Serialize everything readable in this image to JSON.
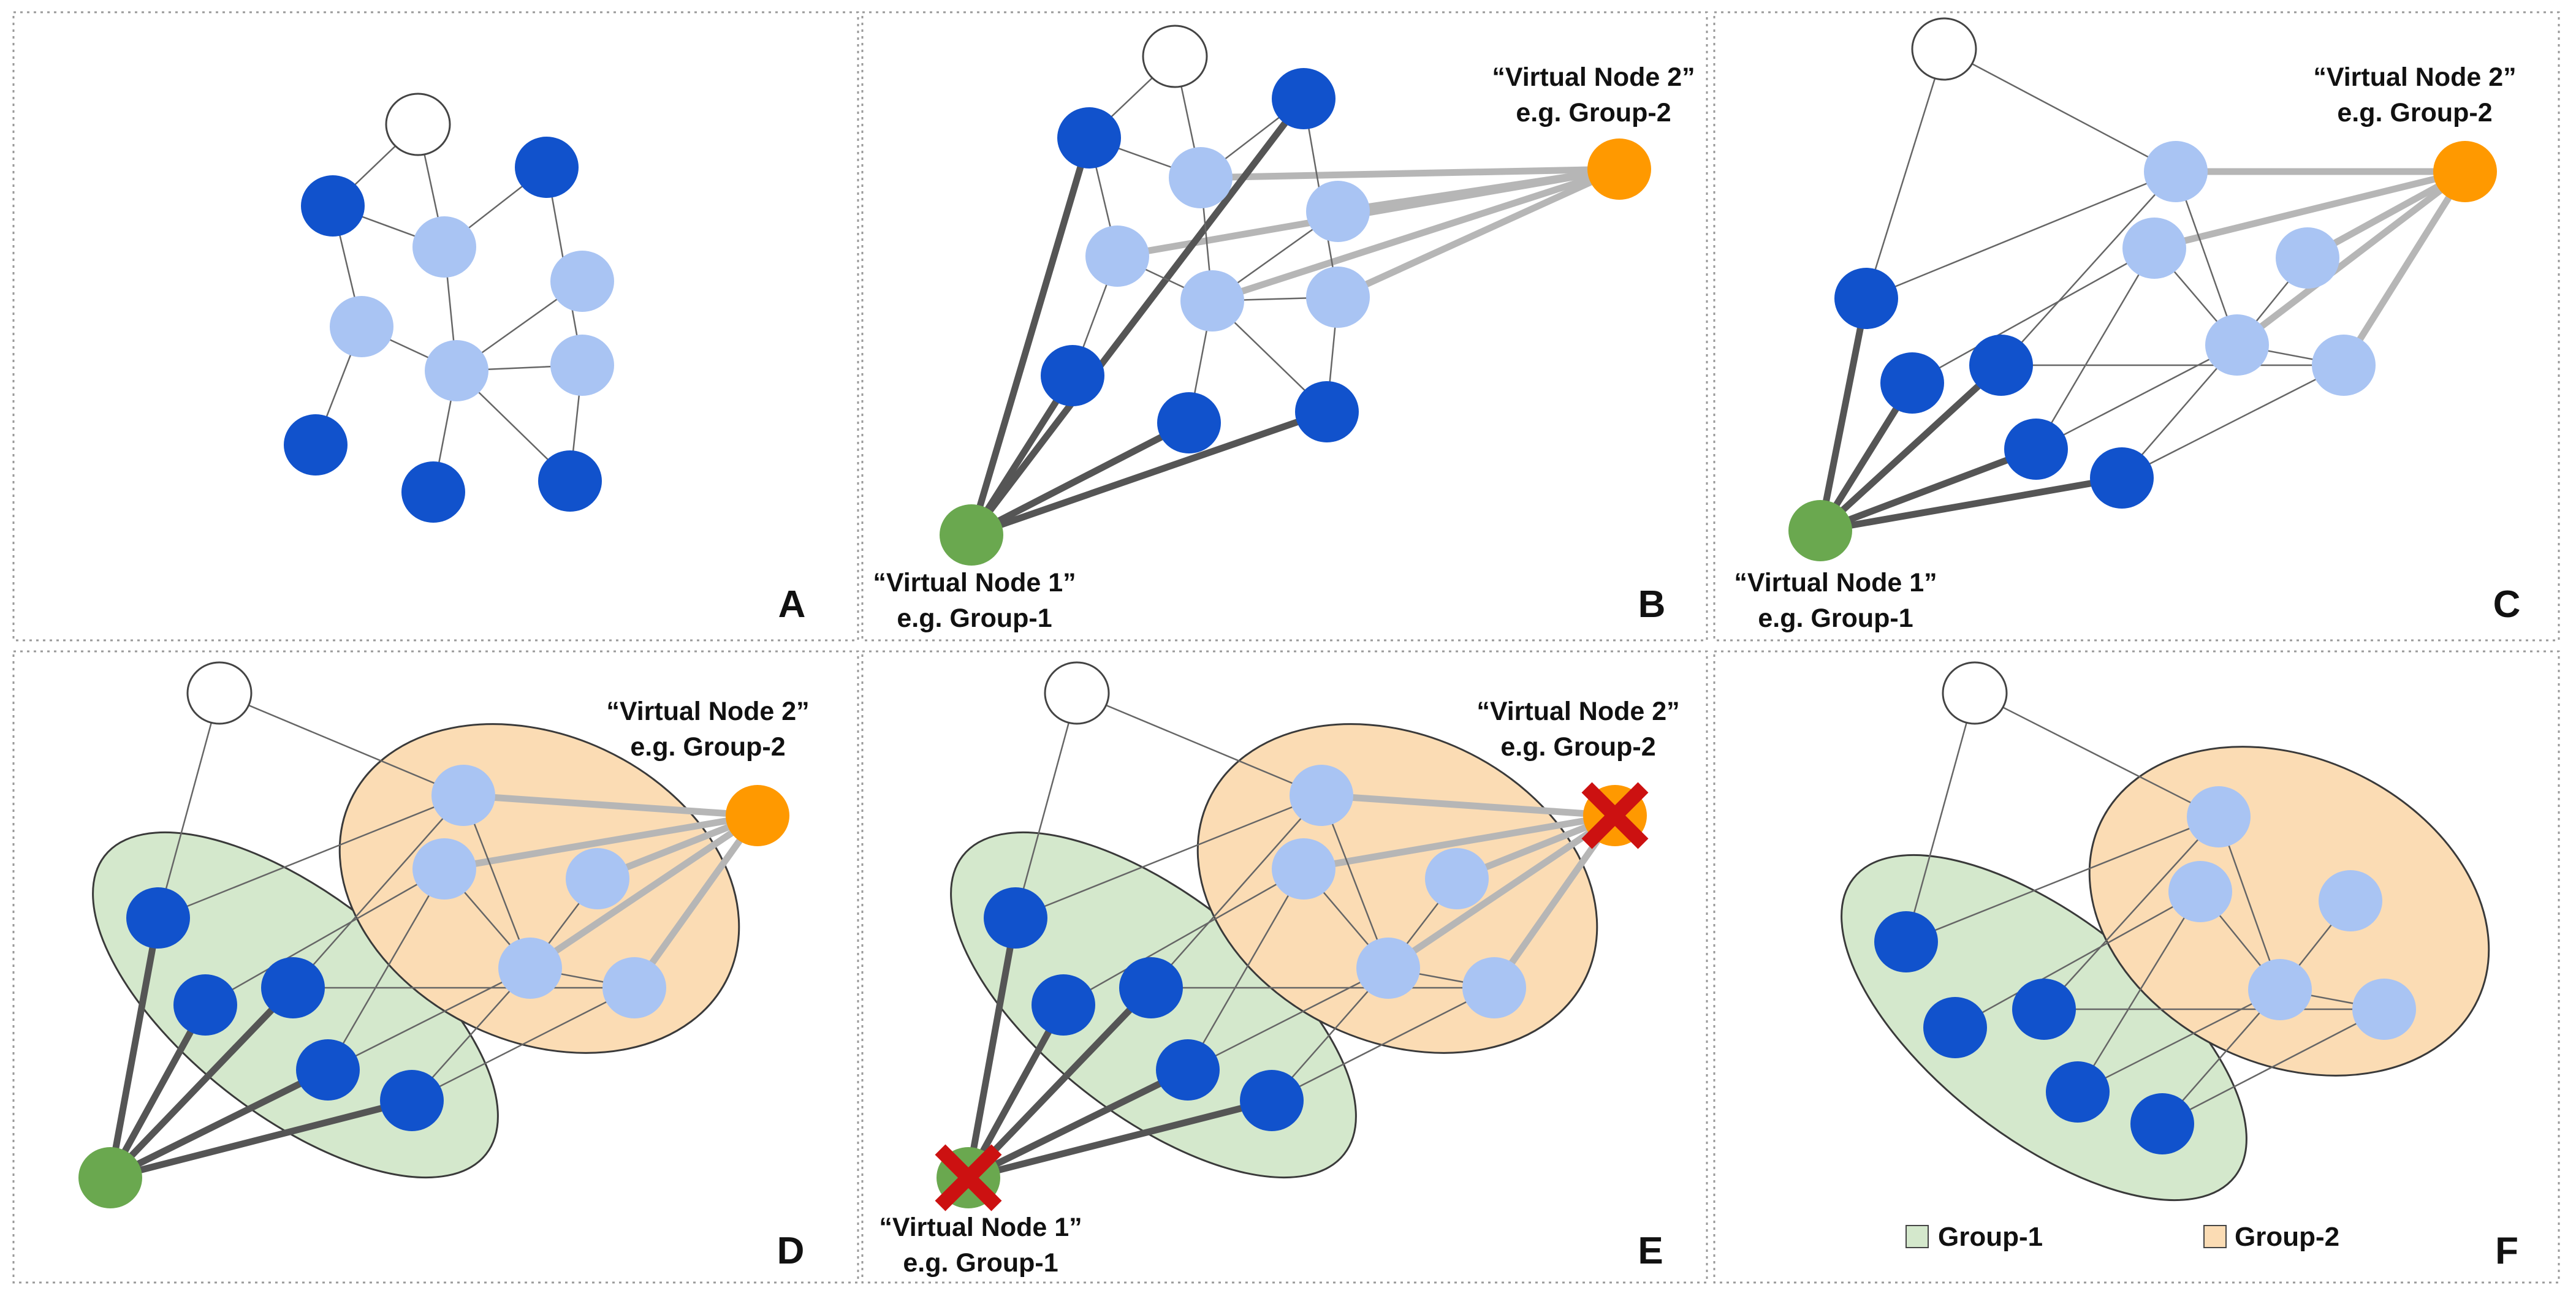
{
  "colors": {
    "unlabeled": "#ffffff",
    "group1_node": "#1152cc",
    "group2_node": "#a9c4f3",
    "virtual1": "#6aa84f",
    "virtual2": "#ff9900",
    "group1_fill": "#d4e8cc",
    "group2_fill": "#fbdcb4",
    "edge_thin": "#666666",
    "edge_dark": "#555555",
    "edge_light": "#b6b6b6",
    "cross": "#cc1111"
  },
  "panels": [
    {
      "letter": "A"
    },
    {
      "letter": "B",
      "vn1": {
        "line1": "“Virtual Node 1”",
        "line2": "e.g. Group-1"
      },
      "vn2": {
        "line1": "“Virtual Node 2”",
        "line2": "e.g. Group-2"
      }
    },
    {
      "letter": "C",
      "vn1": {
        "line1": "“Virtual Node 1”",
        "line2": "e.g. Group-1"
      },
      "vn2": {
        "line1": "“Virtual Node 2”",
        "line2": "e.g. Group-2"
      }
    },
    {
      "letter": "D",
      "vn2": {
        "line1": "“Virtual Node 2”",
        "line2": "e.g. Group-2"
      }
    },
    {
      "letter": "E",
      "vn1": {
        "line1": "“Virtual Node 1”",
        "line2": "e.g. Group-1"
      },
      "vn2": {
        "line1": "“Virtual Node 2”",
        "line2": "e.g. Group-2"
      }
    },
    {
      "letter": "F"
    }
  ],
  "legend": {
    "group1": "Group-1",
    "group2": "Group-2"
  }
}
